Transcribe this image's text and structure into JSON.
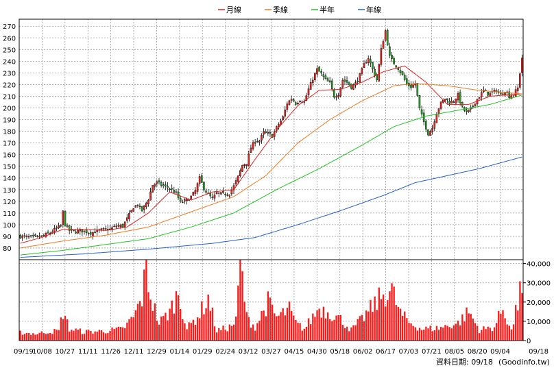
{
  "legend": [
    {
      "label": "月線",
      "color": "#e0201a"
    },
    {
      "label": "季線",
      "color": "#f07a20"
    },
    {
      "label": "半年",
      "color": "#22c422"
    },
    {
      "label": "年線",
      "color": "#2060d0"
    }
  ],
  "footer": {
    "date_text": "資料日期: 09/18",
    "source_text": "(Goodinfo.tw)"
  },
  "colors": {
    "up": "#e8231c",
    "down": "#2aa02a",
    "grid": "#9a9a9a",
    "frame": "#000000",
    "volume": "#ff1a1a"
  },
  "chart_data": [
    {
      "type": "candlestick",
      "x_tick_labels": [
        "09/19",
        "10/08",
        "10/27",
        "11/11",
        "11/26",
        "12/11",
        "12/29",
        "01/14",
        "01/29",
        "02/24",
        "03/12",
        "03/27",
        "04/15",
        "04/30",
        "05/18",
        "06/02",
        "06/17",
        "07/03",
        "07/21",
        "08/05",
        "08/20",
        "09/04",
        "09/18"
      ],
      "y_ticks": [
        80,
        90,
        100,
        110,
        120,
        130,
        140,
        150,
        160,
        170,
        180,
        190,
        200,
        210,
        220,
        230,
        240,
        250,
        260,
        270
      ],
      "ylim": [
        70,
        276
      ],
      "grid": true,
      "close_anchors": [
        [
          0,
          90
        ],
        [
          6,
          89
        ],
        [
          10,
          90
        ],
        [
          14,
          93
        ],
        [
          17,
          97
        ],
        [
          19,
          99
        ],
        [
          20,
          111
        ],
        [
          21,
          100
        ],
        [
          23,
          95
        ],
        [
          26,
          94
        ],
        [
          28,
          95
        ],
        [
          31,
          94
        ],
        [
          33,
          93
        ],
        [
          35,
          94
        ],
        [
          37,
          95
        ],
        [
          40,
          96
        ],
        [
          42,
          96
        ],
        [
          45,
          99
        ],
        [
          48,
          99
        ],
        [
          50,
          105
        ],
        [
          53,
          115
        ],
        [
          55,
          117
        ],
        [
          57,
          112
        ],
        [
          60,
          122
        ],
        [
          62,
          134
        ],
        [
          64,
          136
        ],
        [
          67,
          133
        ],
        [
          70,
          131
        ],
        [
          73,
          127
        ],
        [
          75,
          119
        ],
        [
          78,
          121
        ],
        [
          80,
          124
        ],
        [
          82,
          129
        ],
        [
          84,
          140
        ],
        [
          86,
          131
        ],
        [
          88,
          126
        ],
        [
          90,
          122
        ],
        [
          92,
          127
        ],
        [
          95,
          126
        ],
        [
          98,
          127
        ],
        [
          100,
          133
        ],
        [
          102,
          141
        ],
        [
          104,
          151
        ],
        [
          106,
          153
        ],
        [
          108,
          166
        ],
        [
          110,
          172
        ],
        [
          112,
          172
        ],
        [
          114,
          179
        ],
        [
          116,
          178
        ],
        [
          118,
          176
        ],
        [
          120,
          183
        ],
        [
          123,
          192
        ],
        [
          125,
          204
        ],
        [
          127,
          208
        ],
        [
          129,
          204
        ],
        [
          131,
          207
        ],
        [
          133,
          205
        ],
        [
          135,
          216
        ],
        [
          137,
          225
        ],
        [
          139,
          233
        ],
        [
          141,
          229
        ],
        [
          143,
          224
        ],
        [
          145,
          221
        ],
        [
          147,
          210
        ],
        [
          149,
          212
        ],
        [
          151,
          224
        ],
        [
          153,
          222
        ],
        [
          155,
          218
        ],
        [
          157,
          221
        ],
        [
          159,
          228
        ],
        [
          161,
          237
        ],
        [
          163,
          243
        ],
        [
          165,
          233
        ],
        [
          167,
          224
        ],
        [
          169,
          250
        ],
        [
          171,
          266
        ],
        [
          173,
          244
        ],
        [
          175,
          238
        ],
        [
          177,
          234
        ],
        [
          179,
          228
        ],
        [
          181,
          220
        ],
        [
          183,
          218
        ],
        [
          185,
          221
        ],
        [
          187,
          199
        ],
        [
          189,
          188
        ],
        [
          191,
          178
        ],
        [
          193,
          183
        ],
        [
          195,
          196
        ],
        [
          197,
          204
        ],
        [
          199,
          208
        ],
        [
          201,
          205
        ],
        [
          203,
          206
        ],
        [
          205,
          211
        ],
        [
          207,
          200
        ],
        [
          209,
          196
        ],
        [
          211,
          199
        ],
        [
          213,
          205
        ],
        [
          215,
          210
        ],
        [
          217,
          215
        ],
        [
          219,
          212
        ],
        [
          221,
          213
        ],
        [
          223,
          215
        ],
        [
          225,
          211
        ],
        [
          227,
          215
        ],
        [
          229,
          210
        ],
        [
          231,
          212
        ],
        [
          233,
          217
        ],
        [
          235,
          243
        ]
      ],
      "moving_averages": [
        {
          "name": "月線",
          "color": "#e0201a",
          "anchors": [
            [
              0,
              84
            ],
            [
              10,
              89
            ],
            [
              20,
              96
            ],
            [
              30,
              96
            ],
            [
              40,
              95
            ],
            [
              50,
              98
            ],
            [
              60,
              110
            ],
            [
              70,
              128
            ],
            [
              80,
              121
            ],
            [
              90,
              128
            ],
            [
              100,
              130
            ],
            [
              110,
              156
            ],
            [
              120,
              181
            ],
            [
              130,
              202
            ],
            [
              140,
              215
            ],
            [
              150,
              216
            ],
            [
              160,
              222
            ],
            [
              170,
              231
            ],
            [
              180,
              236
            ],
            [
              190,
              222
            ],
            [
              200,
              203
            ],
            [
              210,
              203
            ],
            [
              220,
              210
            ],
            [
              235,
              212
            ]
          ]
        },
        {
          "name": "季線",
          "color": "#f07a20",
          "anchors": [
            [
              0,
              80
            ],
            [
              20,
              86
            ],
            [
              40,
              91
            ],
            [
              60,
              98
            ],
            [
              80,
              111
            ],
            [
              100,
              124
            ],
            [
              115,
              142
            ],
            [
              130,
              170
            ],
            [
              145,
              190
            ],
            [
              160,
              206
            ],
            [
              175,
              219
            ],
            [
              185,
              221
            ],
            [
              200,
              219
            ],
            [
              215,
              215
            ],
            [
              235,
              212
            ]
          ]
        },
        {
          "name": "半年",
          "color": "#22c422",
          "anchors": [
            [
              0,
              74
            ],
            [
              20,
              78
            ],
            [
              40,
              83
            ],
            [
              60,
              88
            ],
            [
              80,
              98
            ],
            [
              100,
              110
            ],
            [
              120,
              130
            ],
            [
              140,
              148
            ],
            [
              160,
              168
            ],
            [
              175,
              184
            ],
            [
              190,
              193
            ],
            [
              205,
              198
            ],
            [
              220,
              203
            ],
            [
              235,
              211
            ]
          ]
        },
        {
          "name": "年線",
          "color": "#2060d0",
          "anchors": [
            [
              0,
              72
            ],
            [
              30,
              75
            ],
            [
              60,
              79
            ],
            [
              90,
              84
            ],
            [
              110,
              89
            ],
            [
              130,
              100
            ],
            [
              150,
              112
            ],
            [
              170,
              125
            ],
            [
              185,
              136
            ],
            [
              200,
              142
            ],
            [
              215,
              148
            ],
            [
              235,
              158
            ]
          ]
        }
      ]
    },
    {
      "type": "bar",
      "y_ticks": [
        0,
        10000,
        20000,
        30000,
        40000
      ],
      "y_tick_labels": [
        "0",
        "10,000",
        "20,000",
        "30,000",
        "40,000"
      ],
      "ylim": [
        0,
        42000
      ],
      "volume_anchors": [
        [
          0,
          4200
        ],
        [
          8,
          3500
        ],
        [
          12,
          4500
        ],
        [
          18,
          5000
        ],
        [
          20,
          15000
        ],
        [
          21,
          12000
        ],
        [
          23,
          6000
        ],
        [
          30,
          4500
        ],
        [
          40,
          5000
        ],
        [
          48,
          6000
        ],
        [
          53,
          12000
        ],
        [
          57,
          22000
        ],
        [
          59,
          38000
        ],
        [
          61,
          23000
        ],
        [
          65,
          9000
        ],
        [
          70,
          15000
        ],
        [
          74,
          25000
        ],
        [
          78,
          6000
        ],
        [
          84,
          14000
        ],
        [
          88,
          22000
        ],
        [
          92,
          5000
        ],
        [
          98,
          7000
        ],
        [
          101,
          10000
        ],
        [
          103,
          43000
        ],
        [
          106,
          12000
        ],
        [
          110,
          7000
        ],
        [
          116,
          20000
        ],
        [
          120,
          12000
        ],
        [
          126,
          16000
        ],
        [
          129,
          9000
        ],
        [
          133,
          6000
        ],
        [
          140,
          17000
        ],
        [
          146,
          14000
        ],
        [
          150,
          11000
        ],
        [
          155,
          5500
        ],
        [
          160,
          11000
        ],
        [
          163,
          15000
        ],
        [
          170,
          24000
        ],
        [
          174,
          26000
        ],
        [
          178,
          14000
        ],
        [
          182,
          9500
        ],
        [
          188,
          6000
        ],
        [
          196,
          6500
        ],
        [
          205,
          9000
        ],
        [
          210,
          15000
        ],
        [
          215,
          5500
        ],
        [
          222,
          7000
        ],
        [
          226,
          17000
        ],
        [
          230,
          5000
        ],
        [
          233,
          19000
        ],
        [
          234,
          36000
        ],
        [
          235,
          20000
        ]
      ]
    }
  ]
}
